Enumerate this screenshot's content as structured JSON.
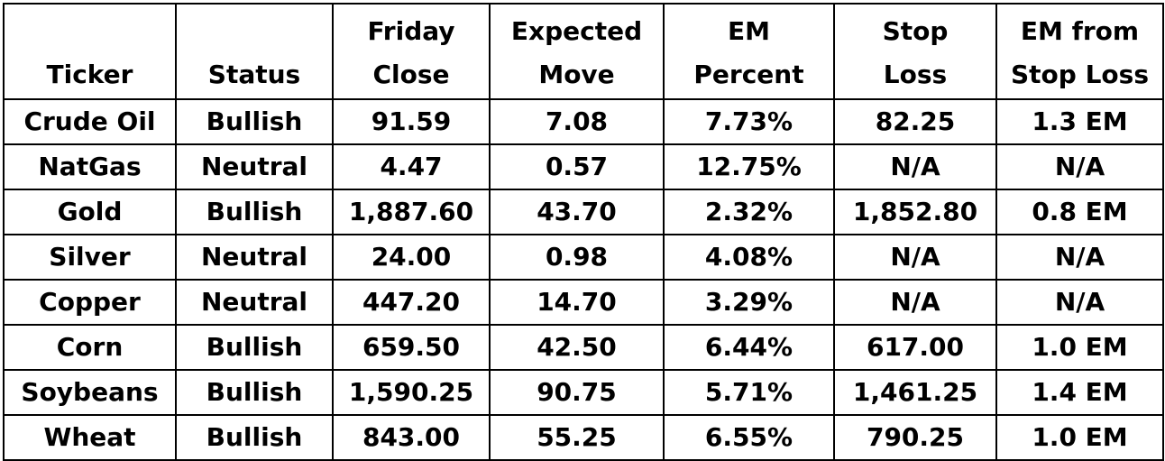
{
  "table": {
    "headers": [
      [
        "Ticker"
      ],
      [
        "Status"
      ],
      [
        "Friday",
        "Close"
      ],
      [
        "Expected",
        "Move"
      ],
      [
        "EM",
        "Percent"
      ],
      [
        "Stop",
        "Loss"
      ],
      [
        "EM from",
        "Stop Loss"
      ]
    ],
    "rows": [
      [
        "Crude Oil",
        "Bullish",
        "91.59",
        "7.08",
        "7.73%",
        "82.25",
        "1.3 EM"
      ],
      [
        "NatGas",
        "Neutral",
        "4.47",
        "0.57",
        "12.75%",
        "N/A",
        "N/A"
      ],
      [
        "Gold",
        "Bullish",
        "1,887.60",
        "43.70",
        "2.32%",
        "1,852.80",
        "0.8 EM"
      ],
      [
        "Silver",
        "Neutral",
        "24.00",
        "0.98",
        "4.08%",
        "N/A",
        "N/A"
      ],
      [
        "Copper",
        "Neutral",
        "447.20",
        "14.70",
        "3.29%",
        "N/A",
        "N/A"
      ],
      [
        "Corn",
        "Bullish",
        "659.50",
        "42.50",
        "6.44%",
        "617.00",
        "1.0 EM"
      ],
      [
        "Soybeans",
        "Bullish",
        "1,590.25",
        "90.75",
        "5.71%",
        "1,461.25",
        "1.4 EM"
      ],
      [
        "Wheat",
        "Bullish",
        "843.00",
        "55.25",
        "6.55%",
        "790.25",
        "1.0 EM"
      ]
    ]
  }
}
